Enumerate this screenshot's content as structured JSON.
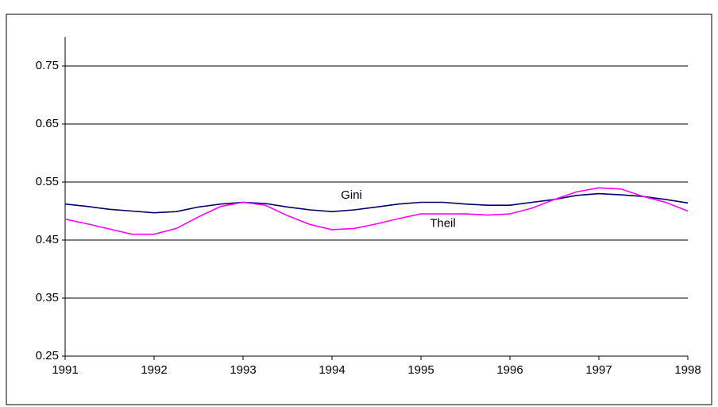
{
  "chart_data": {
    "type": "line",
    "x": [
      1991,
      1991.25,
      1991.5,
      1991.75,
      1992,
      1992.25,
      1992.5,
      1992.75,
      1993,
      1993.25,
      1993.5,
      1993.75,
      1994,
      1994.25,
      1994.5,
      1994.75,
      1995,
      1995.25,
      1995.5,
      1995.75,
      1996,
      1996.25,
      1996.5,
      1996.75,
      1997,
      1997.25,
      1997.5,
      1997.75,
      1998
    ],
    "series": [
      {
        "name": "Gini",
        "color": "#000066",
        "values": [
          0.512,
          0.508,
          0.503,
          0.5,
          0.497,
          0.499,
          0.507,
          0.512,
          0.515,
          0.513,
          0.507,
          0.502,
          0.499,
          0.502,
          0.507,
          0.512,
          0.515,
          0.515,
          0.512,
          0.51,
          0.51,
          0.515,
          0.52,
          0.527,
          0.53,
          0.528,
          0.525,
          0.52,
          0.514
        ]
      },
      {
        "name": "Theil",
        "color": "#ff00ff",
        "values": [
          0.486,
          0.478,
          0.469,
          0.46,
          0.46,
          0.47,
          0.49,
          0.508,
          0.515,
          0.51,
          0.492,
          0.477,
          0.468,
          0.47,
          0.478,
          0.487,
          0.495,
          0.495,
          0.495,
          0.493,
          0.495,
          0.505,
          0.52,
          0.533,
          0.54,
          0.538,
          0.525,
          0.515,
          0.5
        ]
      }
    ],
    "xlim": [
      1991,
      1998
    ],
    "xticks": [
      1991,
      1992,
      1993,
      1994,
      1995,
      1996,
      1997,
      1998
    ],
    "ylim": [
      0.25,
      0.8
    ],
    "yticks": [
      0.25,
      0.35,
      0.45,
      0.55,
      0.65,
      0.75
    ],
    "grid": true
  }
}
